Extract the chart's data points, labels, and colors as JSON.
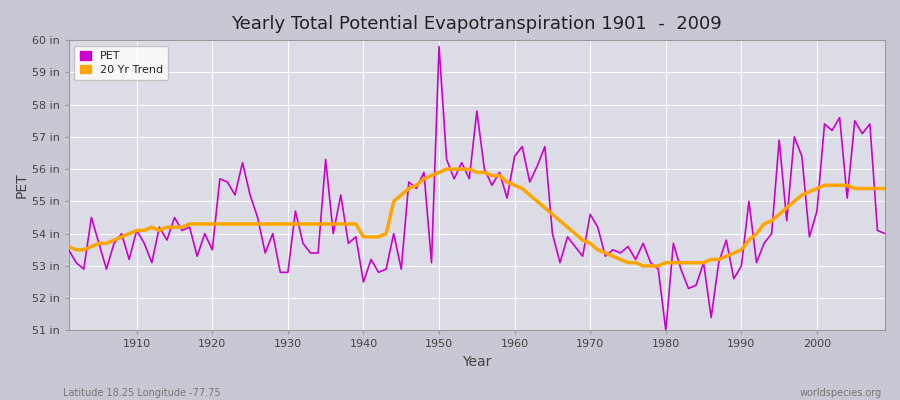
{
  "title": "Yearly Total Potential Evapotranspiration 1901  -  2009",
  "xlabel": "Year",
  "ylabel": "PET",
  "subtitle_left": "Latitude 18.25 Longitude -77.75",
  "subtitle_right": "worldspecies.org",
  "pet_color": "#cc00cc",
  "trend_color": "#ffa500",
  "fig_bg_color": "#d0d0d8",
  "plot_bg_color": "#e0e0e8",
  "ylim": [
    51,
    60
  ],
  "yticks": [
    51,
    52,
    53,
    54,
    55,
    56,
    57,
    58,
    59,
    60
  ],
  "ytick_labels": [
    "51 in",
    "52 in",
    "53 in",
    "54 in",
    "55 in",
    "56 in",
    "57 in",
    "58 in",
    "59 in",
    "60 in"
  ],
  "years": [
    1901,
    1902,
    1903,
    1904,
    1905,
    1906,
    1907,
    1908,
    1909,
    1910,
    1911,
    1912,
    1913,
    1914,
    1915,
    1916,
    1917,
    1918,
    1919,
    1920,
    1921,
    1922,
    1923,
    1924,
    1925,
    1926,
    1927,
    1928,
    1929,
    1930,
    1931,
    1932,
    1933,
    1934,
    1935,
    1936,
    1937,
    1938,
    1939,
    1940,
    1941,
    1942,
    1943,
    1944,
    1945,
    1946,
    1947,
    1948,
    1949,
    1950,
    1951,
    1952,
    1953,
    1954,
    1955,
    1956,
    1957,
    1958,
    1959,
    1960,
    1961,
    1962,
    1963,
    1964,
    1965,
    1966,
    1967,
    1968,
    1969,
    1970,
    1971,
    1972,
    1973,
    1974,
    1975,
    1976,
    1977,
    1978,
    1979,
    1980,
    1981,
    1982,
    1983,
    1984,
    1985,
    1986,
    1987,
    1988,
    1989,
    1990,
    1991,
    1992,
    1993,
    1994,
    1995,
    1996,
    1997,
    1998,
    1999,
    2000,
    2001,
    2002,
    2003,
    2004,
    2005,
    2006,
    2007,
    2008,
    2009
  ],
  "pet_values": [
    53.5,
    53.1,
    52.9,
    54.5,
    53.7,
    52.9,
    53.7,
    54.0,
    53.2,
    54.1,
    53.7,
    53.1,
    54.2,
    53.8,
    54.5,
    54.1,
    54.2,
    53.3,
    54.0,
    53.5,
    55.7,
    55.6,
    55.2,
    56.2,
    55.2,
    54.5,
    53.4,
    54.0,
    52.8,
    52.8,
    54.7,
    53.7,
    53.4,
    53.4,
    56.3,
    54.0,
    55.2,
    53.7,
    53.9,
    52.5,
    53.2,
    52.8,
    52.9,
    54.0,
    52.9,
    55.6,
    55.4,
    55.9,
    53.1,
    59.8,
    56.3,
    55.7,
    56.2,
    55.7,
    57.8,
    56.0,
    55.5,
    55.9,
    55.1,
    56.4,
    56.7,
    55.6,
    56.1,
    56.7,
    54.0,
    53.1,
    53.9,
    53.6,
    53.3,
    54.6,
    54.2,
    53.3,
    53.5,
    53.4,
    53.6,
    53.2,
    53.7,
    53.1,
    52.9,
    51.0,
    53.7,
    52.9,
    52.3,
    52.4,
    53.1,
    51.4,
    53.1,
    53.8,
    52.6,
    53.0,
    55.0,
    53.1,
    53.7,
    54.0,
    56.9,
    54.4,
    57.0,
    56.4,
    53.9,
    54.7,
    57.4,
    57.2,
    57.6,
    55.1,
    57.5,
    57.1,
    57.4,
    54.1,
    54.0
  ],
  "trend_values": [
    53.6,
    53.5,
    53.5,
    53.6,
    53.7,
    53.7,
    53.8,
    53.9,
    54.0,
    54.1,
    54.1,
    54.2,
    54.1,
    54.2,
    54.2,
    54.2,
    54.3,
    54.3,
    54.3,
    54.3,
    54.3,
    54.3,
    54.3,
    54.3,
    54.3,
    54.3,
    54.3,
    54.3,
    54.3,
    54.3,
    54.3,
    54.3,
    54.3,
    54.3,
    54.3,
    54.3,
    54.3,
    54.3,
    54.3,
    53.9,
    53.9,
    53.9,
    54.0,
    55.0,
    55.2,
    55.4,
    55.5,
    55.7,
    55.8,
    55.9,
    56.0,
    56.0,
    56.0,
    56.0,
    55.9,
    55.9,
    55.8,
    55.8,
    55.6,
    55.5,
    55.4,
    55.2,
    55.0,
    54.8,
    54.6,
    54.4,
    54.2,
    54.0,
    53.8,
    53.7,
    53.5,
    53.4,
    53.3,
    53.2,
    53.1,
    53.1,
    53.0,
    53.0,
    53.0,
    53.1,
    53.1,
    53.1,
    53.1,
    53.1,
    53.1,
    53.2,
    53.2,
    53.3,
    53.4,
    53.5,
    53.8,
    54.0,
    54.3,
    54.4,
    54.6,
    54.8,
    55.0,
    55.2,
    55.3,
    55.4,
    55.5,
    55.5,
    55.5,
    55.5,
    55.4,
    55.4,
    55.4,
    55.4,
    55.4
  ]
}
